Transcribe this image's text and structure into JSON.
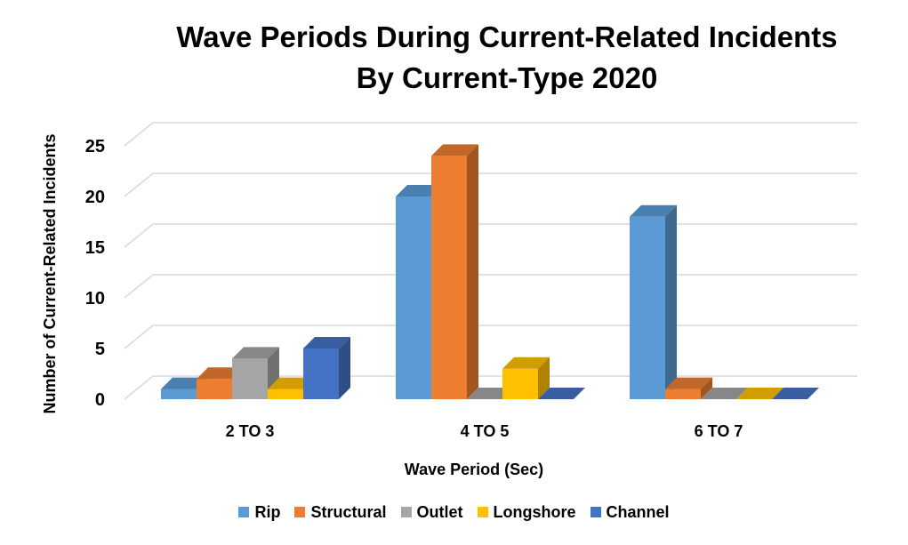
{
  "chart_data": {
    "type": "bar",
    "title": [
      "Wave Periods During Current-Related Incidents",
      "By Current-Type 2020"
    ],
    "xlabel": "Wave Period (Sec)",
    "ylabel": "Number of Current-Related Incidents",
    "ylim": [
      0,
      25
    ],
    "yticks": [
      0,
      5,
      10,
      15,
      20,
      25
    ],
    "grid": true,
    "legend_position": "bottom",
    "categories": [
      "2 TO 3",
      "4 TO 5",
      "6 TO 7"
    ],
    "series": [
      {
        "name": "Rip",
        "values": [
          1,
          20,
          18
        ],
        "color": "#5B9BD5"
      },
      {
        "name": "Structural",
        "values": [
          2,
          24,
          1
        ],
        "color": "#ED7D31"
      },
      {
        "name": "Outlet",
        "values": [
          4,
          0,
          0
        ],
        "color": "#A5A5A5"
      },
      {
        "name": "Longshore",
        "values": [
          1,
          3,
          0
        ],
        "color": "#FFC000"
      },
      {
        "name": "Channel",
        "values": [
          5,
          0,
          0
        ],
        "color": "#4472C4"
      }
    ]
  }
}
